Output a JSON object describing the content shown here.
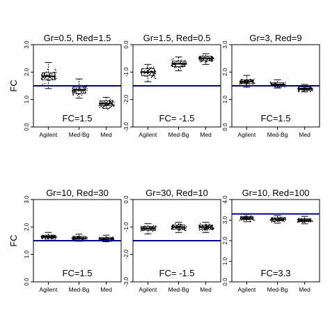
{
  "chart_data": [
    {
      "type": "boxplot",
      "title": "Gr=0.5, Red=1.5",
      "ylabel": "FC",
      "ylim": [
        0,
        3
      ],
      "yticks": [
        "0.0",
        "1.0",
        "2.0",
        "3.0"
      ],
      "categories": [
        "Agilent",
        "Med-Bg",
        "Med"
      ],
      "medians": [
        1.85,
        1.35,
        0.85
      ],
      "q1": [
        1.72,
        1.22,
        0.78
      ],
      "q3": [
        1.98,
        1.45,
        0.95
      ],
      "whisker_low": [
        1.4,
        1.05,
        0.68
      ],
      "whisker_high": [
        2.35,
        1.75,
        1.08
      ],
      "reference_line": 1.5,
      "annotation": "FC=1.5",
      "line_color": "#00008b"
    },
    {
      "type": "boxplot",
      "title": "Gr=1.5, Red=0.5",
      "ylabel": "",
      "ylim": [
        -3,
        0
      ],
      "yticks": [
        "-3.0",
        "-2.0",
        "-1.0",
        "0.0"
      ],
      "categories": [
        "Agilent",
        "Med-Bg",
        "Med"
      ],
      "medians": [
        -1.0,
        -0.7,
        -0.5
      ],
      "q1": [
        -1.12,
        -0.8,
        -0.58
      ],
      "q3": [
        -0.88,
        -0.6,
        -0.42
      ],
      "whisker_low": [
        -1.35,
        -0.95,
        -0.72
      ],
      "whisker_high": [
        -0.72,
        -0.45,
        -0.33
      ],
      "reference_line": -1.5,
      "annotation": "FC= -1.5",
      "line_color": "#00008b"
    },
    {
      "type": "boxplot",
      "title": "Gr=3, Red=9",
      "ylabel": "",
      "ylim": [
        0,
        3
      ],
      "yticks": [
        "0.0",
        "1.0",
        "2.0",
        "3.0"
      ],
      "categories": [
        "Agilent",
        "Med-Bg",
        "Med"
      ],
      "medians": [
        1.65,
        1.55,
        1.4
      ],
      "q1": [
        1.58,
        1.5,
        1.35
      ],
      "q3": [
        1.72,
        1.62,
        1.46
      ],
      "whisker_low": [
        1.45,
        1.42,
        1.28
      ],
      "whisker_high": [
        1.88,
        1.72,
        1.55
      ],
      "reference_line": 1.5,
      "annotation": "FC=1.5",
      "line_color": "#00008b"
    },
    {
      "type": "boxplot",
      "title": "Gr=10, Red=30",
      "ylabel": "FC",
      "ylim": [
        0,
        3
      ],
      "yticks": [
        "0.0",
        "1.0",
        "2.0",
        "3.0"
      ],
      "categories": [
        "Agilent",
        "Med-Bg",
        "Med"
      ],
      "medians": [
        1.65,
        1.6,
        1.57
      ],
      "q1": [
        1.6,
        1.55,
        1.52
      ],
      "q3": [
        1.7,
        1.66,
        1.62
      ],
      "whisker_low": [
        1.52,
        1.48,
        1.46
      ],
      "whisker_high": [
        1.8,
        1.74,
        1.7
      ],
      "reference_line": 1.5,
      "annotation": "FC=1.5",
      "line_color": "#00008b"
    },
    {
      "type": "boxplot",
      "title": "Gr=30, Red=10",
      "ylabel": "",
      "ylim": [
        -3,
        0
      ],
      "yticks": [
        "-3.0",
        "-2.0",
        "-1.0",
        "0.0"
      ],
      "categories": [
        "Agilent",
        "Med-Bg",
        "Med"
      ],
      "medians": [
        -1.05,
        -1.0,
        -1.0
      ],
      "q1": [
        -1.12,
        -1.08,
        -1.08
      ],
      "q3": [
        -0.98,
        -0.93,
        -0.93
      ],
      "whisker_low": [
        -1.25,
        -1.2,
        -1.2
      ],
      "whisker_high": [
        -0.88,
        -0.83,
        -0.83
      ],
      "reference_line": -1.5,
      "annotation": "FC= -1.5",
      "line_color": "#00008b"
    },
    {
      "type": "boxplot",
      "title": "Gr=10, Red=100",
      "ylabel": "",
      "ylim": [
        0,
        4
      ],
      "yticks": [
        "0.0",
        "1.0",
        "2.0",
        "3.0",
        "4.0"
      ],
      "categories": [
        "Agilent",
        "Med-Bg",
        "Med"
      ],
      "medians": [
        3.1,
        3.05,
        3.0
      ],
      "q1": [
        3.03,
        2.97,
        2.93
      ],
      "q3": [
        3.17,
        3.12,
        3.07
      ],
      "whisker_low": [
        2.92,
        2.85,
        2.82
      ],
      "whisker_high": [
        3.28,
        3.22,
        3.18
      ],
      "reference_line": 3.3,
      "annotation": "FC=3.3",
      "line_color": "#00008b"
    }
  ]
}
